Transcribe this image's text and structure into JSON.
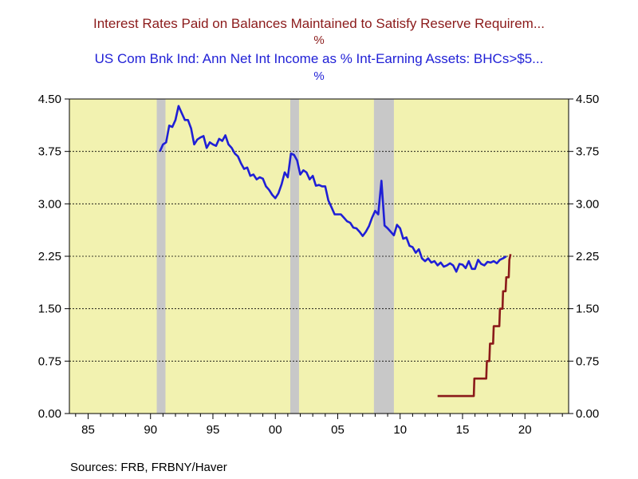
{
  "titles": [
    {
      "text": "Interest Rates Paid on Balances Maintained to Satisfy Reserve Requirem...",
      "unit": "%",
      "color": "#8b1a1a"
    },
    {
      "text": "US Com Bnk Ind: Ann Net Int Income as % Int-Earning Assets: BHCs>$5...",
      "unit": "%",
      "color": "#1f1fd6"
    }
  ],
  "source": "Sources:  FRB, FRBNY/Haver",
  "colors": {
    "plot_bg": "#f2f2b0",
    "recession": "#c8c8c8"
  },
  "chart_data": {
    "type": "line",
    "x_range": [
      1983.5,
      2023.5
    ],
    "ylim": [
      0,
      4.5
    ],
    "y_ticks": [
      "0.00",
      "0.75",
      "1.50",
      "2.25",
      "3.00",
      "3.75",
      "4.50"
    ],
    "x_ticks": [
      {
        "year": 1985,
        "label": "85"
      },
      {
        "year": 1990,
        "label": "90"
      },
      {
        "year": 1995,
        "label": "95"
      },
      {
        "year": 2000,
        "label": "00"
      },
      {
        "year": 2005,
        "label": "05"
      },
      {
        "year": 2010,
        "label": "10"
      },
      {
        "year": 2015,
        "label": "15"
      },
      {
        "year": 2020,
        "label": "20"
      }
    ],
    "grid": "horizontal dashed",
    "recessions": [
      [
        1990.5,
        1991.2
      ],
      [
        2001.2,
        2001.9
      ],
      [
        2007.9,
        2009.5
      ]
    ],
    "series": [
      {
        "color": "#1f1fd6",
        "x": [
          1990.75,
          1991.0,
          1991.25,
          1991.5,
          1991.75,
          1992.0,
          1992.25,
          1992.5,
          1992.75,
          1993.0,
          1993.25,
          1993.5,
          1993.75,
          1994.0,
          1994.25,
          1994.5,
          1994.75,
          1995.0,
          1995.25,
          1995.5,
          1995.75,
          1996.0,
          1996.25,
          1996.5,
          1996.75,
          1997.0,
          1997.25,
          1997.5,
          1997.75,
          1998.0,
          1998.25,
          1998.5,
          1998.75,
          1999.0,
          1999.25,
          1999.5,
          1999.75,
          2000.0,
          2000.25,
          2000.5,
          2000.75,
          2001.0,
          2001.25,
          2001.5,
          2001.75,
          2002.0,
          2002.25,
          2002.5,
          2002.75,
          2003.0,
          2003.25,
          2003.5,
          2003.75,
          2004.0,
          2004.25,
          2004.5,
          2004.75,
          2005.0,
          2005.25,
          2005.5,
          2005.75,
          2006.0,
          2006.25,
          2006.5,
          2006.75,
          2007.0,
          2007.25,
          2007.5,
          2007.75,
          2008.0,
          2008.25,
          2008.5,
          2008.75,
          2009.0,
          2009.25,
          2009.5,
          2009.75,
          2010.0,
          2010.25,
          2010.5,
          2010.75,
          2011.0,
          2011.25,
          2011.5,
          2011.75,
          2012.0,
          2012.25,
          2012.5,
          2012.75,
          2013.0,
          2013.25,
          2013.5,
          2013.75,
          2014.0,
          2014.25,
          2014.5,
          2014.75,
          2015.0,
          2015.25,
          2015.5,
          2015.75,
          2016.0,
          2016.25,
          2016.5,
          2016.75,
          2017.0,
          2017.25,
          2017.5,
          2017.75,
          2018.0,
          2018.25,
          2018.5
        ],
        "values": [
          3.75,
          3.85,
          3.88,
          4.12,
          4.1,
          4.2,
          4.4,
          4.3,
          4.2,
          4.2,
          4.08,
          3.85,
          3.92,
          3.95,
          3.97,
          3.8,
          3.88,
          3.85,
          3.83,
          3.93,
          3.9,
          3.98,
          3.85,
          3.8,
          3.72,
          3.68,
          3.58,
          3.5,
          3.52,
          3.4,
          3.42,
          3.35,
          3.38,
          3.36,
          3.25,
          3.2,
          3.13,
          3.08,
          3.15,
          3.28,
          3.45,
          3.38,
          3.72,
          3.7,
          3.62,
          3.42,
          3.48,
          3.45,
          3.35,
          3.4,
          3.26,
          3.27,
          3.25,
          3.25,
          3.05,
          2.95,
          2.85,
          2.85,
          2.85,
          2.8,
          2.75,
          2.73,
          2.66,
          2.65,
          2.6,
          2.54,
          2.6,
          2.68,
          2.8,
          2.9,
          2.85,
          3.33,
          2.69,
          2.65,
          2.6,
          2.55,
          2.7,
          2.65,
          2.5,
          2.52,
          2.4,
          2.38,
          2.3,
          2.35,
          2.22,
          2.18,
          2.22,
          2.16,
          2.18,
          2.12,
          2.16,
          2.1,
          2.12,
          2.15,
          2.12,
          2.03,
          2.14,
          2.13,
          2.08,
          2.18,
          2.07,
          2.07,
          2.2,
          2.14,
          2.12,
          2.17,
          2.16,
          2.18,
          2.15,
          2.2,
          2.22,
          2.25
        ]
      },
      {
        "color": "#8b1a1a",
        "x": [
          2013.0,
          2015.9,
          2015.95,
          2016.9,
          2016.95,
          2017.15,
          2017.2,
          2017.45,
          2017.5,
          2017.95,
          2018.0,
          2018.2,
          2018.25,
          2018.45,
          2018.5,
          2018.7,
          2018.75,
          2018.85
        ],
        "values": [
          0.25,
          0.25,
          0.5,
          0.5,
          0.75,
          0.75,
          1.0,
          1.0,
          1.25,
          1.25,
          1.5,
          1.5,
          1.75,
          1.75,
          1.95,
          1.95,
          2.2,
          2.28
        ]
      }
    ]
  }
}
